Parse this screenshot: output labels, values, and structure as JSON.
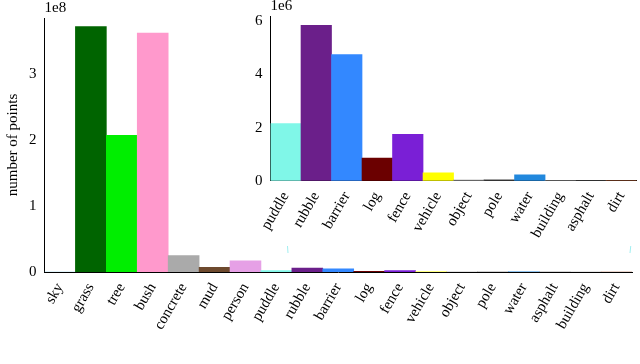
{
  "chart_data": [
    {
      "type": "bar",
      "y_label": "number of points",
      "annotations": [
        "1e8"
      ],
      "categories": [
        "sky",
        "grass",
        "tree",
        "bush",
        "concrete",
        "mud",
        "person",
        "puddle",
        "rubble",
        "barrier",
        "log",
        "fence",
        "vehicle",
        "object",
        "pole",
        "water",
        "asphalt",
        "building",
        "dirt"
      ],
      "values": [
        0,
        3.72,
        2.07,
        3.62,
        0.25,
        0.07,
        0.17,
        0.02,
        0.06,
        0.05,
        0.01,
        0.02,
        0.003,
        0,
        0,
        0.002,
        0,
        0,
        0
      ],
      "colors": [
        "#87ceeb",
        "#006400",
        "#00ee00",
        "#ff99cc",
        "#aaaaaa",
        "#6e4a2e",
        "#e6a0e6",
        "#80f7e8",
        "#6b1f8a",
        "#3388ff",
        "#6b0000",
        "#7a1fd6",
        "#ffff00",
        "#888888",
        "#444444",
        "#2288dd",
        "#555555",
        "#999999",
        "#a0522d"
      ],
      "ylim": [
        0,
        3.85
      ],
      "yticks": [
        0,
        1,
        2,
        3
      ],
      "grid": false
    },
    {
      "type": "bar",
      "annotations": [
        "1e6"
      ],
      "categories": [
        "puddle",
        "rubble",
        "barrier",
        "log",
        "fence",
        "vehicle",
        "object",
        "pole",
        "water",
        "building",
        "asphalt",
        "dirt"
      ],
      "values": [
        2.15,
        5.85,
        4.75,
        0.85,
        1.75,
        0.3,
        0.02,
        0.03,
        0.22,
        0,
        0,
        0
      ],
      "colors": [
        "#80f7e8",
        "#6b1f8a",
        "#3388ff",
        "#6b0000",
        "#7a1fd6",
        "#ffff00",
        "#888888",
        "#444444",
        "#2288dd",
        "#999999",
        "#555555",
        "#a0522d"
      ],
      "ylim": [
        0,
        6.2
      ],
      "yticks": [
        0,
        2,
        4,
        6
      ],
      "grid": false
    }
  ]
}
